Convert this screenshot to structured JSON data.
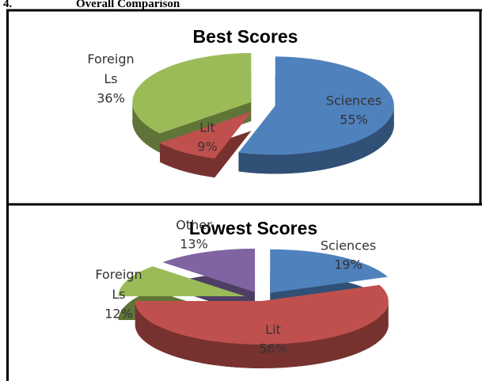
{
  "heading": {
    "number": "4.",
    "title": "Overall Comparison"
  },
  "chart_data": [
    {
      "type": "pie",
      "title": "Best Scores",
      "categories": [
        "Sciences",
        "Lit",
        "Foreign Ls"
      ],
      "values": [
        55,
        9,
        36
      ],
      "value_labels": [
        "55%",
        "9%",
        "36%"
      ],
      "colors": [
        "#4f81bd",
        "#c0504d",
        "#9bbb59"
      ]
    },
    {
      "type": "pie",
      "title": "Lowest Scores",
      "categories": [
        "Sciences",
        "Lit",
        "Foreign Ls",
        "Other"
      ],
      "values": [
        19,
        56,
        12,
        13
      ],
      "value_labels": [
        "19%",
        "56%",
        "12%",
        "13%"
      ],
      "colors": [
        "#4f81bd",
        "#c0504d",
        "#9bbb59",
        "#8064a2"
      ]
    }
  ]
}
